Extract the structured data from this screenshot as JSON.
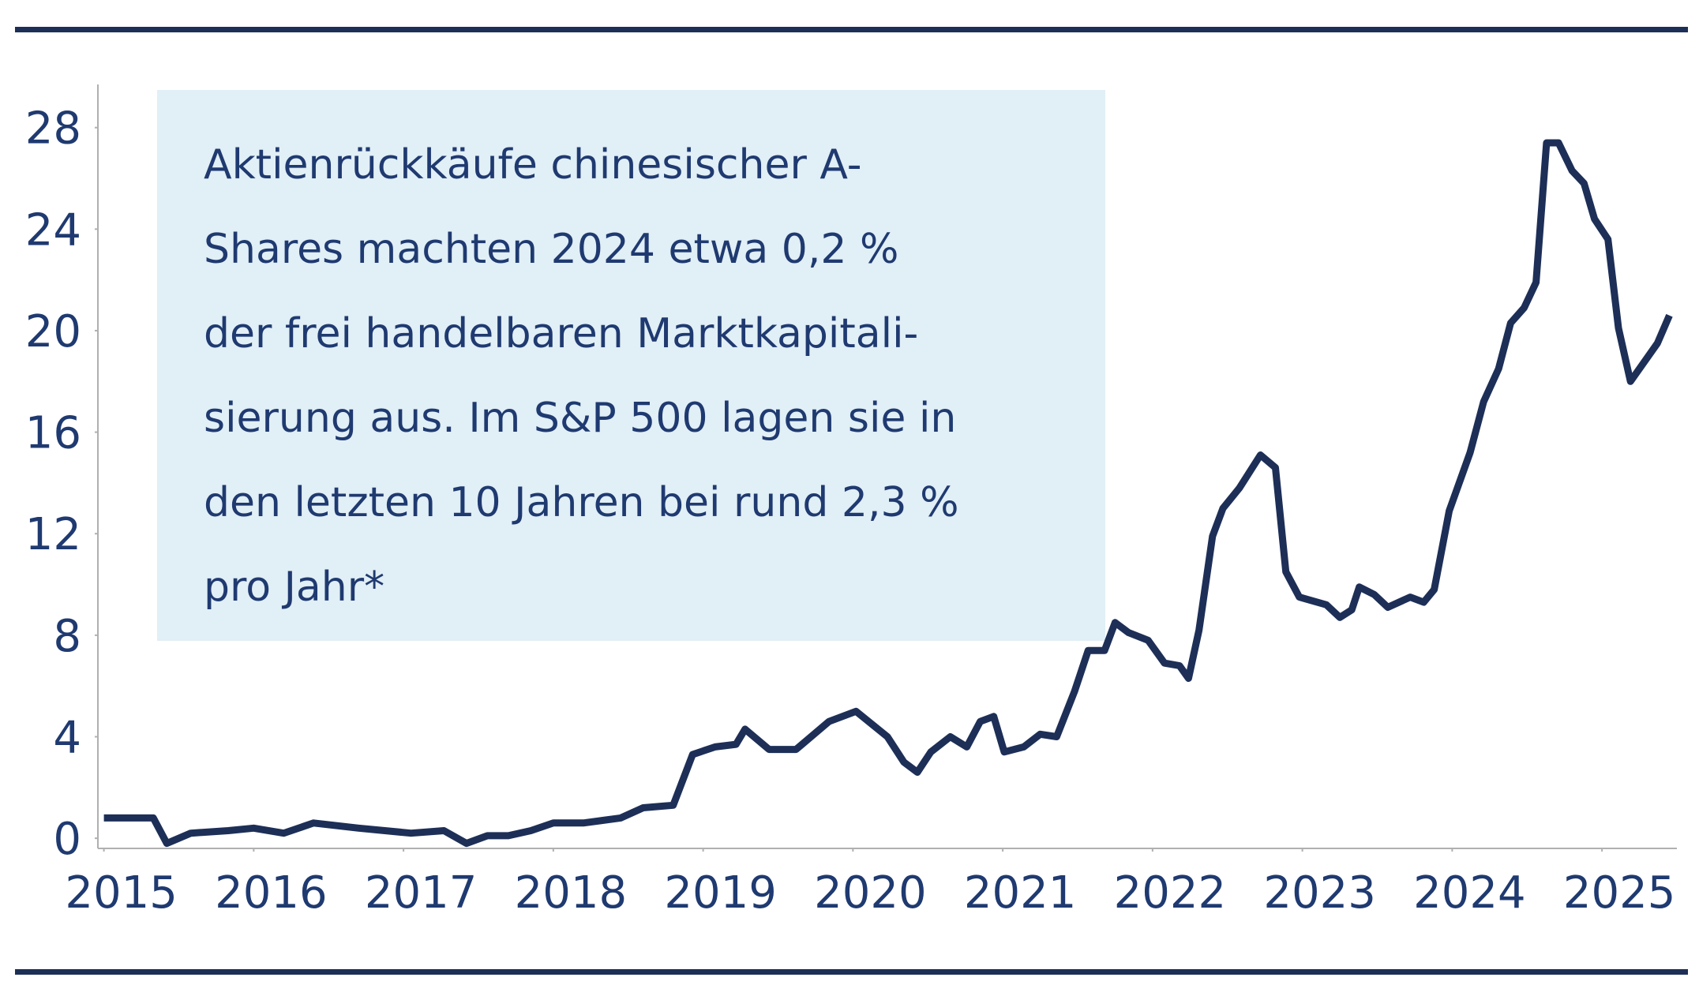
{
  "chart_data": {
    "type": "line",
    "annotation": [
      "Aktienrückkäufe chinesischer A-",
      "Shares machten 2024 etwa 0,2  %",
      "der frei handelbaren Marktkapitali-",
      "sierung aus. Im S&P 500 lagen sie in",
      "den letzten 10 Jahren bei rund 2,3  %",
      "pro Jahr*"
    ],
    "x": [
      2015.0,
      2015.33,
      2015.42,
      2015.58,
      2015.83,
      2016.0,
      2016.2,
      2016.4,
      2016.7,
      2017.05,
      2017.27,
      2017.42,
      2017.56,
      2017.7,
      2017.85,
      2018.0,
      2018.2,
      2018.45,
      2018.6,
      2018.8,
      2018.93,
      2019.08,
      2019.22,
      2019.28,
      2019.44,
      2019.62,
      2019.84,
      2020.02,
      2020.23,
      2020.34,
      2020.43,
      2020.52,
      2020.65,
      2020.76,
      2020.85,
      2020.94,
      2021.01,
      2021.14,
      2021.25,
      2021.36,
      2021.48,
      2021.57,
      2021.68,
      2021.75,
      2021.84,
      2021.97,
      2022.08,
      2022.18,
      2022.24,
      2022.31,
      2022.4,
      2022.47,
      2022.58,
      2022.72,
      2022.82,
      2022.89,
      2022.98,
      2023.16,
      2023.25,
      2023.33,
      2023.38,
      2023.48,
      2023.57,
      2023.72,
      2023.81,
      2023.88,
      2023.98,
      2024.12,
      2024.21,
      2024.31,
      2024.39,
      2024.48,
      2024.56,
      2024.63,
      2024.71,
      2024.8,
      2024.88,
      2024.95,
      2025.04,
      2025.11,
      2025.19,
      2025.37,
      2025.45
    ],
    "values": [
      0.8,
      0.8,
      -0.2,
      0.2,
      0.3,
      0.4,
      0.2,
      0.6,
      0.4,
      0.2,
      0.3,
      -0.2,
      0.1,
      0.1,
      0.3,
      0.6,
      0.6,
      0.8,
      1.2,
      1.3,
      3.3,
      3.6,
      3.7,
      4.3,
      3.5,
      3.5,
      4.6,
      5.0,
      4.0,
      3.0,
      2.6,
      3.4,
      4.0,
      3.6,
      4.6,
      4.8,
      3.4,
      3.6,
      4.1,
      4.0,
      5.8,
      7.4,
      7.4,
      8.5,
      8.1,
      7.8,
      6.9,
      6.8,
      6.3,
      8.2,
      11.9,
      13.0,
      13.8,
      15.1,
      14.6,
      10.5,
      9.5,
      9.2,
      8.7,
      9.0,
      9.9,
      9.6,
      9.1,
      9.5,
      9.3,
      9.8,
      12.9,
      15.2,
      17.2,
      18.5,
      20.3,
      20.9,
      21.9,
      27.4,
      27.4,
      26.3,
      25.8,
      24.4,
      23.6,
      20.1,
      18.0,
      19.5,
      20.6
    ],
    "color": "#1d2f57",
    "xlim": [
      2014.96,
      2025.5
    ],
    "xticks": [
      2015,
      2016,
      2017,
      2018,
      2019,
      2020,
      2021,
      2022,
      2023,
      2024,
      2025
    ],
    "ylim": [
      -0.4,
      29.7
    ],
    "yticks": [
      0,
      4,
      8,
      12,
      16,
      20,
      24,
      28
    ]
  }
}
